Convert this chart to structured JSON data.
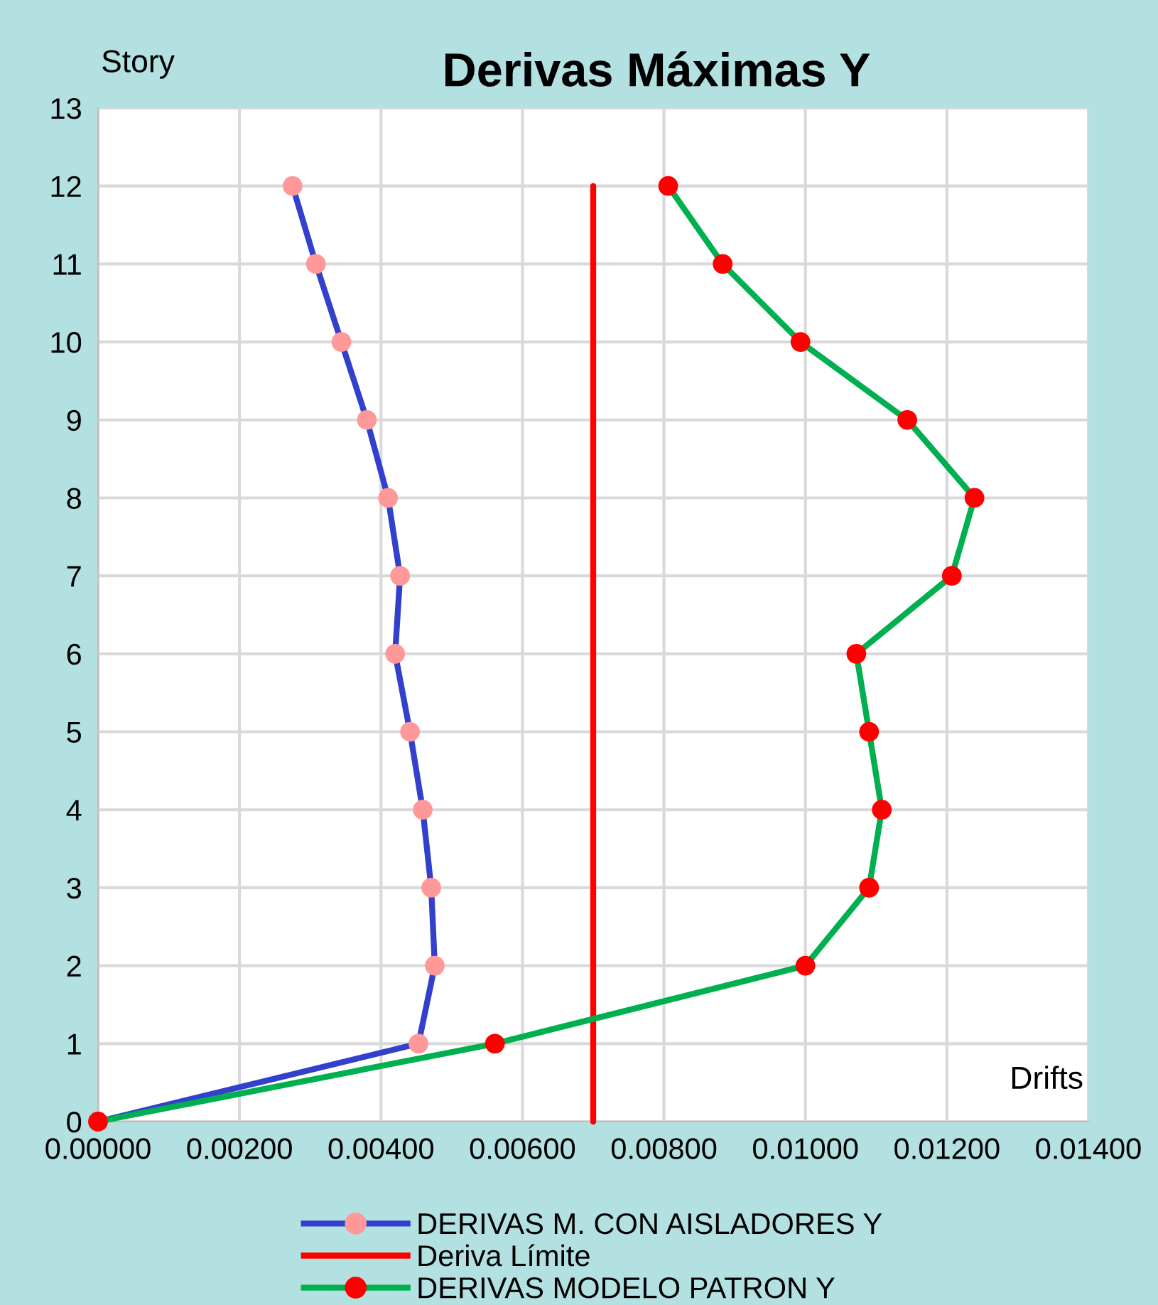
{
  "chart_data": {
    "type": "line",
    "title": "Derivas Máximas Y",
    "xlabel": "Drifts",
    "ylabel": "Story",
    "series": [
      {
        "name": "DERIVAS M. CON AISLADORES Y",
        "color": "#3340cc",
        "colors": [
          "#ff9999",
          "#ff9999",
          "#ff9999",
          "#ff9999",
          "#ff9999",
          "#ff9999",
          "#ff9999",
          "#ff9999",
          "#ff9999",
          "#ff9999",
          "#ff9999",
          "#ff9999",
          "#ff9999"
        ],
        "x": [
          0,
          0.00453,
          0.00476,
          0.00471,
          0.00459,
          0.00441,
          0.0042,
          0.00427,
          0.0041,
          0.0038,
          0.00344,
          0.00308,
          0.00275
        ],
        "values": [
          0,
          1,
          2,
          3,
          4,
          5,
          6,
          7,
          8,
          9,
          10,
          11,
          12
        ],
        "marker": "circle"
      },
      {
        "name": "Deriva Límite",
        "color": "#ff0000",
        "x": [
          0.007,
          0.007
        ],
        "values": [
          0,
          12
        ],
        "marker": "none"
      },
      {
        "name": "DERIVAS MODELO PATRON Y",
        "color": "#00b050",
        "colors": [
          "#ff0000",
          "#ff0000",
          "#ff0000",
          "#ff0000",
          "#ff0000",
          "#ff0000",
          "#ff0000",
          "#ff0000",
          "#ff0000",
          "#ff0000",
          "#ff0000",
          "#ff0000",
          "#ff0000"
        ],
        "x": [
          0,
          0.00561,
          0.01,
          0.0109,
          0.01108,
          0.0109,
          0.01072,
          0.01207,
          0.01239,
          0.01144,
          0.00993,
          0.00883,
          0.00806
        ],
        "values": [
          0,
          1,
          2,
          3,
          4,
          5,
          6,
          7,
          8,
          9,
          10,
          11,
          12
        ],
        "marker": "circle"
      }
    ],
    "xlim": [
      0,
      0.014
    ],
    "xticks": [
      {
        "value": 0,
        "label": "0.00000"
      },
      {
        "value": 0.002,
        "label": "0.00200"
      },
      {
        "value": 0.004,
        "label": "0.00400"
      },
      {
        "value": 0.006,
        "label": "0.00600"
      },
      {
        "value": 0.008,
        "label": "0.00800"
      },
      {
        "value": 0.01,
        "label": "0.01000"
      },
      {
        "value": 0.012,
        "label": "0.01200"
      },
      {
        "value": 0.014,
        "label": "0.01400"
      }
    ],
    "ylim": [
      0,
      13
    ],
    "yticks": [
      0,
      1,
      2,
      3,
      4,
      5,
      6,
      7,
      8,
      9,
      10,
      11,
      12,
      13
    ],
    "grid": true,
    "legend": "bottom"
  }
}
